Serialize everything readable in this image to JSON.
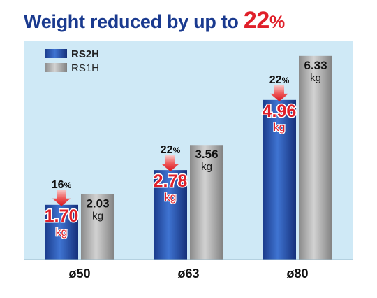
{
  "title": {
    "prefix": "Weight reduced by up to ",
    "highlight": "22",
    "unit": "%"
  },
  "colors": {
    "title": "#1a3a8f",
    "accent": "#e0202a",
    "panel": "#cfe9f6",
    "rs2h": "#1f4aa0",
    "rs1h": "#a9a9a9"
  },
  "legend": [
    {
      "label": "RS2H",
      "icon": "blue-gradient-swatch"
    },
    {
      "label": "RS1H",
      "icon": "gray-gradient-swatch"
    }
  ],
  "chart_data": {
    "type": "bar",
    "categories": [
      "ø50",
      "ø63",
      "ø80"
    ],
    "series": [
      {
        "name": "RS2H",
        "values": [
          1.7,
          2.78,
          4.96
        ],
        "labels": [
          "1.70",
          "2.78",
          "4.96"
        ]
      },
      {
        "name": "RS1H",
        "values": [
          2.03,
          3.56,
          6.33
        ],
        "labels": [
          "2.03",
          "3.56",
          "6.33"
        ]
      }
    ],
    "unit": "kg",
    "reductions": [
      "16",
      "22",
      "22"
    ],
    "reduction_unit": "%",
    "legend_position": "top-left",
    "grid": false
  }
}
